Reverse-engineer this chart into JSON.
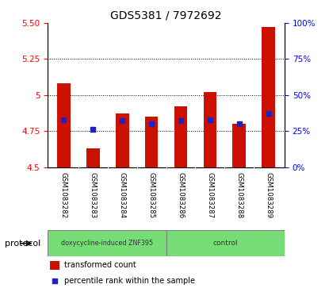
{
  "title": "GDS5381 / 7972692",
  "samples": [
    "GSM1083282",
    "GSM1083283",
    "GSM1083284",
    "GSM1083285",
    "GSM1083286",
    "GSM1083287",
    "GSM1083288",
    "GSM1083289"
  ],
  "red_values": [
    5.08,
    4.63,
    4.87,
    4.85,
    4.92,
    5.02,
    4.8,
    5.47
  ],
  "blue_values": [
    4.83,
    4.76,
    4.82,
    4.8,
    4.82,
    4.83,
    4.8,
    4.87
  ],
  "ylim_left": [
    4.5,
    5.5
  ],
  "ylim_right": [
    0,
    100
  ],
  "yticks_left": [
    4.5,
    4.75,
    5.0,
    5.25,
    5.5
  ],
  "yticks_right": [
    0,
    25,
    50,
    75,
    100
  ],
  "grid_lines": [
    4.75,
    5.0,
    5.25
  ],
  "protocol_groups": [
    {
      "label": "doxycycline-induced ZNF395",
      "n_cols": 4,
      "color": "#77DD77"
    },
    {
      "label": "control",
      "n_cols": 4,
      "color": "#77DD77"
    }
  ],
  "bar_bottom": 4.5,
  "bar_color": "#CC1100",
  "dot_color": "#2222BB",
  "bg_color": "#FFFFFF",
  "plot_bg": "#FFFFFF",
  "label_area_color": "#CCCCCC",
  "bar_width": 0.45,
  "legend_red_label": "transformed count",
  "legend_blue_label": "percentile rank within the sample",
  "protocol_label": "protocol"
}
